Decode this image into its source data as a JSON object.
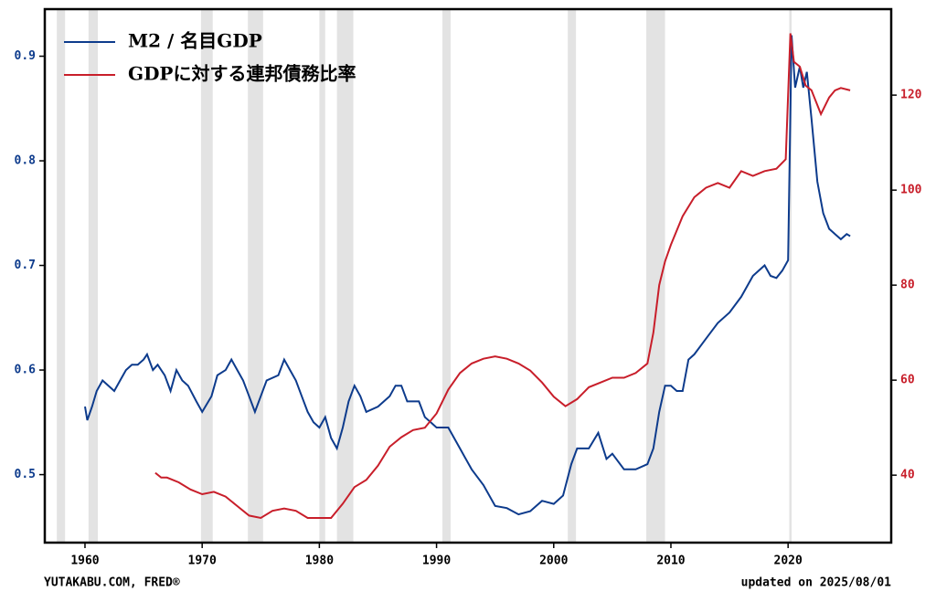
{
  "chart_data": {
    "type": "line",
    "legend": "upper left",
    "xlim": [
      1956.57,
      2028.8
    ],
    "xticks": [
      1960,
      1970,
      1980,
      1990,
      2000,
      2010,
      2020
    ],
    "ylim": [
      0.435,
      0.945
    ],
    "yticks": [
      0.5,
      0.6,
      0.7,
      0.8,
      0.9
    ],
    "y2lim": [
      25.8,
      138.1
    ],
    "y2ticks": [
      40,
      60,
      80,
      100,
      120
    ],
    "ytick_color": "#0d3b8c",
    "y2tick_color": "#c81e2a",
    "recession_color": "#e3e3e3",
    "recessions": [
      [
        1957.6,
        1958.3
      ],
      [
        1960.3,
        1961.1
      ],
      [
        1969.9,
        1970.9
      ],
      [
        1973.9,
        1975.2
      ],
      [
        1980.0,
        1980.5
      ],
      [
        1981.5,
        1982.9
      ],
      [
        1990.5,
        1991.2
      ],
      [
        2001.2,
        2001.9
      ],
      [
        2007.9,
        2009.5
      ],
      [
        2020.1,
        2020.3
      ]
    ],
    "series": [
      {
        "name": "M2 / 名目GDP",
        "color": "#0d3b8c",
        "axis": "y",
        "x": [
          1960,
          1960.2,
          1960.6,
          1961,
          1961.5,
          1962,
          1962.5,
          1963,
          1963.5,
          1964,
          1964.5,
          1965,
          1965.3,
          1965.8,
          1966.2,
          1966.8,
          1967.3,
          1967.8,
          1968.3,
          1968.8,
          1969.5,
          1970,
          1970.8,
          1971.3,
          1972,
          1972.5,
          1973,
          1973.5,
          1974,
          1974.5,
          1975,
          1975.5,
          1976.5,
          1977,
          1977.5,
          1978,
          1978.5,
          1979,
          1979.5,
          1980,
          1980.5,
          1981,
          1981.5,
          1982,
          1982.5,
          1983,
          1983.5,
          1984,
          1985,
          1986,
          1986.5,
          1987,
          1987.5,
          1988.5,
          1989,
          1989.5,
          1990,
          1991,
          1992,
          1993,
          1994,
          1995,
          1996,
          1997,
          1998,
          1999,
          2000,
          2000.8,
          2001.5,
          2002,
          2003,
          2003.8,
          2004.5,
          2005,
          2006,
          2007,
          2008,
          2008.5,
          2009,
          2009.5,
          2010,
          2010.5,
          2011,
          2011.5,
          2012,
          2013,
          2014,
          2015,
          2016,
          2017,
          2018,
          2018.5,
          2019,
          2019.5,
          2020,
          2020.3,
          2020.6,
          2021,
          2021.3,
          2021.6,
          2022,
          2022.5,
          2023,
          2023.5,
          2024,
          2024.5,
          2025,
          2025.3
        ],
        "values": [
          0.565,
          0.552,
          0.565,
          0.58,
          0.59,
          0.585,
          0.58,
          0.59,
          0.6,
          0.605,
          0.605,
          0.61,
          0.615,
          0.6,
          0.605,
          0.595,
          0.58,
          0.6,
          0.59,
          0.585,
          0.57,
          0.56,
          0.575,
          0.595,
          0.6,
          0.61,
          0.6,
          0.59,
          0.575,
          0.56,
          0.575,
          0.59,
          0.595,
          0.61,
          0.6,
          0.59,
          0.575,
          0.56,
          0.55,
          0.545,
          0.555,
          0.535,
          0.525,
          0.545,
          0.57,
          0.585,
          0.575,
          0.56,
          0.565,
          0.575,
          0.585,
          0.585,
          0.57,
          0.57,
          0.555,
          0.55,
          0.545,
          0.545,
          0.525,
          0.505,
          0.49,
          0.47,
          0.468,
          0.462,
          0.465,
          0.475,
          0.472,
          0.48,
          0.51,
          0.525,
          0.525,
          0.54,
          0.515,
          0.52,
          0.505,
          0.505,
          0.51,
          0.525,
          0.56,
          0.585,
          0.585,
          0.58,
          0.58,
          0.61,
          0.615,
          0.63,
          0.645,
          0.655,
          0.67,
          0.69,
          0.7,
          0.69,
          0.688,
          0.695,
          0.705,
          0.92,
          0.87,
          0.89,
          0.87,
          0.885,
          0.84,
          0.78,
          0.75,
          0.735,
          0.73,
          0.725,
          0.73,
          0.728
        ]
      },
      {
        "name": "GDPに対する連邦債務比率",
        "color": "#c81e2a",
        "axis": "y2",
        "x": [
          1966,
          1966.5,
          1967,
          1968,
          1969,
          1970,
          1971,
          1972,
          1973,
          1974,
          1975,
          1976,
          1977,
          1978,
          1979,
          1980,
          1981,
          1982,
          1983,
          1984,
          1985,
          1986,
          1987,
          1988,
          1989,
          1990,
          1991,
          1992,
          1993,
          1994,
          1995,
          1996,
          1997,
          1998,
          1999,
          2000,
          2001,
          2002,
          2003,
          2004,
          2005,
          2006,
          2007,
          2008,
          2008.5,
          2009,
          2009.5,
          2010,
          2011,
          2012,
          2013,
          2014,
          2015,
          2016,
          2017,
          2018,
          2019,
          2019.8,
          2020.2,
          2020.5,
          2021,
          2021.5,
          2022,
          2022.8,
          2023.5,
          2024,
          2024.5,
          2025.3
        ],
        "values": [
          40.5,
          39.5,
          39.5,
          38.5,
          37,
          36,
          36.5,
          35.5,
          33.5,
          31.5,
          31,
          32.5,
          33,
          32.5,
          31,
          31,
          31,
          34,
          37.5,
          39,
          42,
          46,
          48,
          49.5,
          50,
          53,
          58,
          61.5,
          63.5,
          64.5,
          65,
          64.5,
          63.5,
          62,
          59.5,
          56.5,
          54.5,
          56,
          58.5,
          59.5,
          60.5,
          60.5,
          61.5,
          63.5,
          70,
          80,
          85,
          88.5,
          94.5,
          98.5,
          100.5,
          101.5,
          100.5,
          104,
          103,
          104,
          104.5,
          106.5,
          133,
          127,
          126,
          122,
          121,
          116,
          119.5,
          121,
          121.5,
          121
        ]
      }
    ],
    "footer_left": "YUTAKABU.COM, FRED®",
    "footer_right": "updated on 2025/08/01"
  }
}
